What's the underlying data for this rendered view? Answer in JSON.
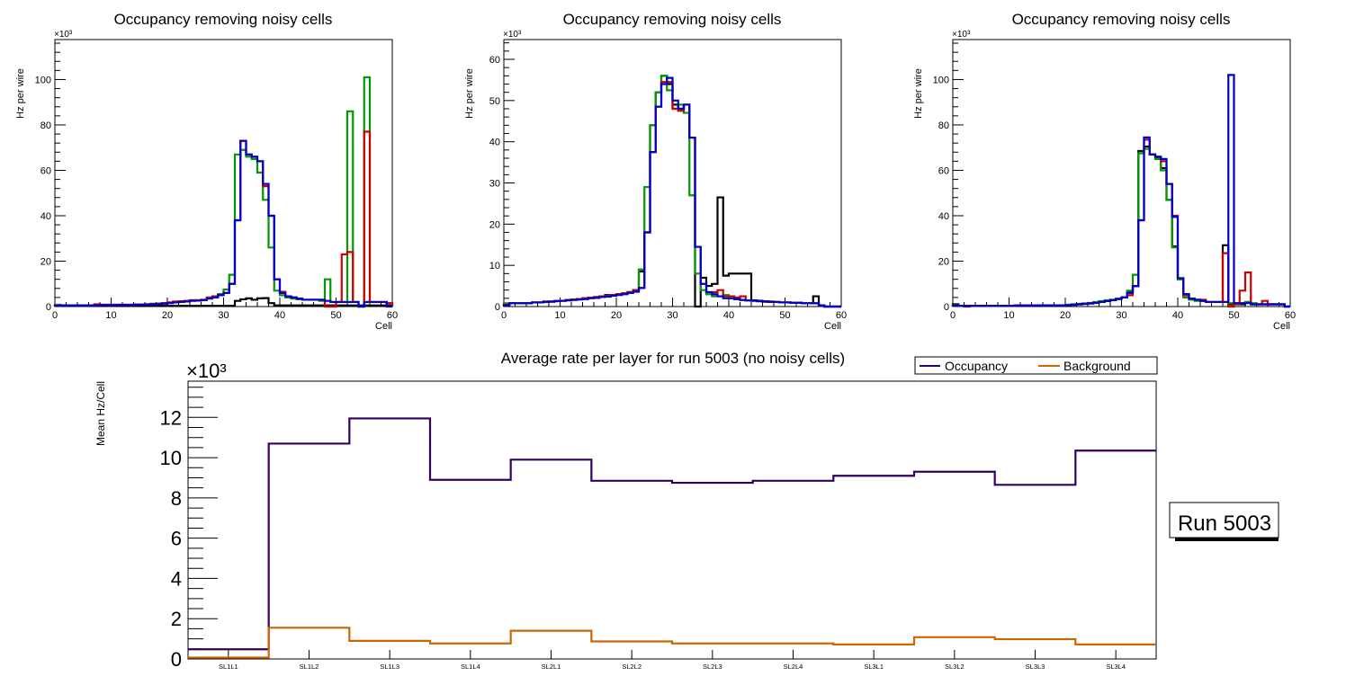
{
  "chart_data": [
    {
      "type": "histogram-step",
      "title": "Occupancy removing noisy cells",
      "xlabel": "Cell",
      "ylabel": "Hz per wire",
      "y_multiplier_label": "×10³",
      "xlim": [
        0,
        60
      ],
      "ylim": [
        0,
        117.6
      ],
      "x_ticks": [
        0,
        10,
        20,
        30,
        40,
        50,
        60
      ],
      "y_ticks": [
        0,
        20,
        40,
        60,
        80,
        100
      ],
      "series": [
        {
          "name": "black",
          "color": "#000000",
          "values": [
            0.3,
            0.3,
            0.3,
            0.3,
            0.3,
            0.3,
            0.3,
            0.3,
            0.3,
            0.3,
            0.3,
            0.3,
            0.3,
            0.3,
            0.3,
            0.3,
            0.3,
            0.3,
            0.3,
            0.3,
            0.3,
            0.3,
            0.3,
            0.3,
            0.3,
            0.3,
            0.3,
            0.3,
            0.3,
            0.3,
            0.3,
            0.3,
            2.5,
            3.2,
            3.6,
            3,
            3.6,
            3.7,
            1.5,
            0.5,
            0.5,
            0.5,
            0.5,
            0.5,
            0.5,
            0.5,
            0.5,
            0.5,
            0.5,
            0.5,
            0.5,
            0.5,
            0.5,
            0.5,
            0.5,
            0.5,
            0.5,
            0.5,
            0.5,
            0.5
          ]
        },
        {
          "name": "green",
          "color": "#009900",
          "values": [
            0.8,
            0.5,
            0.5,
            0.5,
            0.5,
            0.5,
            0.5,
            0.5,
            0.8,
            0.8,
            0.8,
            0.8,
            0.8,
            0.8,
            0.9,
            0.9,
            1,
            1.2,
            1.3,
            1.5,
            1.8,
            2,
            2.3,
            2.5,
            2.8,
            2.8,
            3,
            3.8,
            4.5,
            5.5,
            7.5,
            14,
            67,
            69,
            66,
            65,
            59,
            47,
            26,
            7,
            5,
            4,
            3.5,
            3.2,
            3,
            3,
            3,
            2.5,
            12,
            2,
            2,
            2,
            86,
            2,
            0,
            101,
            2,
            2,
            2,
            1.5
          ]
        },
        {
          "name": "red",
          "color": "#cc0000",
          "values": [
            0.5,
            0.5,
            0.5,
            0.5,
            0.5,
            0.5,
            0.5,
            1,
            0.8,
            0.8,
            0.8,
            0.8,
            0.8,
            0.8,
            0.9,
            0.9,
            1,
            1.2,
            1.3,
            1.5,
            1.8,
            2.2,
            2.3,
            2.5,
            2.8,
            2.8,
            3,
            4,
            4.5,
            5,
            6,
            10,
            38,
            73,
            67,
            66,
            64,
            53,
            40,
            12,
            6.5,
            4.5,
            4,
            3.5,
            3,
            3,
            3,
            3,
            0,
            0,
            2,
            23,
            24,
            2,
            0,
            77,
            2,
            2,
            2,
            1.5
          ]
        },
        {
          "name": "blue",
          "color": "#0000cc",
          "values": [
            0.3,
            0.5,
            0.5,
            0.5,
            0.5,
            0.5,
            0.5,
            0.5,
            0.6,
            0.6,
            0.6,
            0.7,
            0.7,
            0.7,
            0.8,
            0.8,
            0.9,
            1,
            1.1,
            1.3,
            1.5,
            1.8,
            2,
            2.2,
            2.5,
            2.6,
            2.8,
            3.5,
            4,
            5,
            6,
            10,
            38,
            73,
            67,
            66,
            64,
            54,
            40,
            12,
            6,
            4.5,
            4,
            3.5,
            3,
            3,
            3,
            3,
            2.5,
            2,
            2,
            2,
            2,
            2,
            0,
            2,
            2,
            2,
            2,
            0
          ]
        }
      ]
    },
    {
      "type": "histogram-step",
      "title": "Occupancy removing noisy cells",
      "xlabel": "Cell",
      "ylabel": "Hz per wire",
      "y_multiplier_label": "×10³",
      "xlim": [
        0,
        60
      ],
      "ylim": [
        0,
        64.8
      ],
      "x_ticks": [
        0,
        10,
        20,
        30,
        40,
        50,
        60
      ],
      "y_ticks": [
        0,
        10,
        20,
        30,
        40,
        50,
        60
      ],
      "series": [
        {
          "name": "black",
          "color": "#000000",
          "values": [
            0.5,
            0.8,
            0.8,
            0.8,
            0.8,
            1,
            1,
            1.2,
            1.2,
            1.4,
            1.4,
            1.6,
            1.7,
            1.8,
            2,
            2.1,
            2.3,
            2.5,
            2.8,
            2.8,
            3,
            3.2,
            3.5,
            4,
            8.5,
            18,
            44,
            52,
            56,
            54,
            49,
            48,
            49,
            41,
            0,
            7,
            5,
            5.5,
            26.5,
            7.5,
            8,
            8,
            8,
            8,
            1.5,
            1.4,
            1.3,
            1.2,
            1.1,
            1,
            1,
            0.9,
            0.9,
            0.8,
            0.8,
            2.5,
            0.3,
            0,
            0,
            0
          ]
        },
        {
          "name": "green",
          "color": "#009900",
          "values": [
            0.8,
            0.8,
            0.8,
            0.8,
            0.8,
            1,
            1,
            1.2,
            1.2,
            1.4,
            1.4,
            1.6,
            1.7,
            1.8,
            2,
            2.1,
            2.3,
            2.5,
            2.6,
            2.8,
            3,
            3.2,
            3.5,
            4,
            9,
            29,
            44,
            52,
            56,
            52.5,
            48,
            49,
            47,
            27,
            8,
            4,
            3,
            2.5,
            2.5,
            2.8,
            2,
            1.8,
            1.6,
            1.5,
            1.4,
            1.3,
            1.2,
            1.1,
            1.1,
            1,
            1,
            0.9,
            0.9,
            0.8,
            0.8,
            0.8,
            0.3,
            0,
            0,
            0
          ]
        },
        {
          "name": "red",
          "color": "#cc0000",
          "values": [
            0.5,
            0.8,
            0.8,
            0.8,
            0.8,
            1,
            1,
            1.2,
            1.2,
            1.4,
            1.4,
            1.6,
            1.7,
            1.8,
            2,
            2.1,
            2.3,
            2.5,
            2.6,
            2.8,
            3,
            3.2,
            3.5,
            4,
            4.5,
            18,
            37.5,
            48.5,
            54.5,
            54.5,
            48,
            47.5,
            49,
            41,
            14.5,
            5.5,
            3.5,
            3.5,
            4,
            2.5,
            2.5,
            2.2,
            2.5,
            1.5,
            1.4,
            1.3,
            1.2,
            1.1,
            1.1,
            1,
            1,
            0.9,
            0.9,
            0.8,
            0.8,
            0.8,
            0.3,
            0,
            0,
            0
          ]
        },
        {
          "name": "blue",
          "color": "#0000cc",
          "values": [
            0.3,
            0.8,
            0.8,
            0.8,
            0.8,
            1,
            1,
            1.1,
            1.2,
            1.3,
            1.4,
            1.5,
            1.6,
            1.7,
            1.8,
            2,
            2.1,
            2.3,
            2.4,
            2.6,
            2.8,
            3,
            3.3,
            3.6,
            4.5,
            18,
            37.5,
            48.5,
            54,
            55.5,
            50,
            48,
            49,
            41,
            14.5,
            5.5,
            3.5,
            3,
            2.5,
            2,
            2,
            1.8,
            1.6,
            1.5,
            1.4,
            1.3,
            1.2,
            1.1,
            1.1,
            1,
            1,
            0.9,
            0.9,
            0.8,
            0.8,
            0.8,
            0.3,
            0,
            0,
            0
          ]
        }
      ]
    },
    {
      "type": "histogram-step",
      "title": "Occupancy removing noisy cells",
      "xlabel": "Cell",
      "ylabel": "Hz per wire",
      "y_multiplier_label": "×10³",
      "xlim": [
        0,
        60
      ],
      "ylim": [
        0,
        117.6
      ],
      "x_ticks": [
        0,
        10,
        20,
        30,
        40,
        50,
        60
      ],
      "y_ticks": [
        0,
        20,
        40,
        60,
        80,
        100
      ],
      "series": [
        {
          "name": "black",
          "color": "#000000",
          "values": [
            1,
            0.3,
            0.3,
            0.3,
            0.3,
            0.3,
            0.3,
            0.3,
            0.3,
            0.3,
            0.3,
            0.5,
            0.5,
            0.5,
            0.5,
            0.5,
            0.5,
            0.5,
            0.5,
            0.5,
            0.6,
            0.8,
            1,
            1.2,
            1.4,
            1.6,
            2,
            2.4,
            3,
            3.5,
            4,
            6.5,
            9,
            68.5,
            70.5,
            67,
            65.5,
            61,
            47,
            26.5,
            12,
            5,
            3.5,
            3,
            2.5,
            2,
            2,
            2,
            27,
            1,
            1,
            1,
            2,
            1,
            1,
            1,
            1,
            1,
            1,
            0
          ]
        },
        {
          "name": "green",
          "color": "#009900",
          "values": [
            0.5,
            0.3,
            0.3,
            0.3,
            0.3,
            0.3,
            0.3,
            0.3,
            0.3,
            0.3,
            0.3,
            0.5,
            0.5,
            0.5,
            0.5,
            0.5,
            0.5,
            0.5,
            0.5,
            0.5,
            0.8,
            1,
            1.2,
            1.4,
            1.6,
            2,
            2.4,
            2.8,
            3,
            3.5,
            4,
            7,
            14,
            67.5,
            69.5,
            67,
            65,
            60,
            47,
            26,
            12,
            4,
            3,
            2.5,
            2.5,
            2,
            2,
            2,
            2,
            1.5,
            1.5,
            1.5,
            2,
            1.5,
            1,
            1,
            1,
            1,
            1,
            0
          ]
        },
        {
          "name": "red",
          "color": "#cc0000",
          "values": [
            0.3,
            0.3,
            0,
            0.3,
            0.3,
            0.3,
            0.3,
            0.3,
            0.3,
            0.3,
            0.3,
            0.5,
            0.5,
            0.5,
            0.5,
            0.5,
            0.5,
            0.5,
            0.5,
            0.5,
            0.6,
            0.8,
            1,
            1.2,
            1.4,
            1.6,
            2,
            2.4,
            2.8,
            3.3,
            4,
            5,
            9,
            38,
            73.5,
            67,
            66,
            64,
            54,
            40,
            12.5,
            5,
            3.5,
            3,
            3,
            2,
            2,
            2,
            23.5,
            0,
            1,
            7,
            15,
            1,
            1,
            2.5,
            1,
            1,
            1,
            0
          ]
        },
        {
          "name": "blue",
          "color": "#0000cc",
          "values": [
            0.3,
            0.3,
            0.3,
            0.3,
            0.3,
            0.3,
            0.3,
            0.3,
            0.3,
            0.3,
            0.3,
            0.4,
            0.4,
            0.4,
            0.4,
            0.5,
            0.5,
            0.5,
            0.5,
            0.5,
            0.6,
            0.8,
            1,
            1.2,
            1.4,
            1.6,
            2,
            2.4,
            2.8,
            3.3,
            4,
            6,
            9,
            38,
            74.5,
            67,
            66,
            65,
            54,
            39.5,
            12.5,
            5.5,
            3.5,
            3,
            2.5,
            2,
            2,
            2,
            2,
            102,
            1.5,
            1.5,
            1.5,
            1,
            1,
            1,
            1,
            1,
            1,
            0
          ]
        }
      ]
    },
    {
      "type": "histogram-step",
      "title": "Average rate per layer for run 5003 (no noisy cells)",
      "xlabel": "",
      "ylabel": "Mean Hz/Cell",
      "y_multiplier_label": "×10³",
      "ylim": [
        0,
        13.8
      ],
      "y_ticks": [
        0,
        2,
        4,
        6,
        8,
        10,
        12
      ],
      "categories": [
        "SL1L1",
        "SL1L2",
        "SL1L3",
        "SL1L4",
        "SL2L1",
        "SL2L2",
        "SL2L3",
        "SL2L4",
        "SL3L1",
        "SL3L2",
        "SL3L3",
        "SL3L4"
      ],
      "legend": {
        "placement": "top-right",
        "entries": [
          "Occupancy",
          "Background"
        ]
      },
      "series": [
        {
          "name": "Occupancy",
          "color": "#33005f",
          "values": [
            0.48,
            10.7,
            11.95,
            8.9,
            9.9,
            8.85,
            8.75,
            8.85,
            9.1,
            9.3,
            8.65,
            10.35
          ]
        },
        {
          "name": "Background",
          "color": "#cc6600",
          "values": [
            0.07,
            1.55,
            0.9,
            0.77,
            1.4,
            0.87,
            0.77,
            0.77,
            0.72,
            1.08,
            0.98,
            0.72
          ]
        }
      ],
      "annotation": "Run 5003"
    }
  ]
}
